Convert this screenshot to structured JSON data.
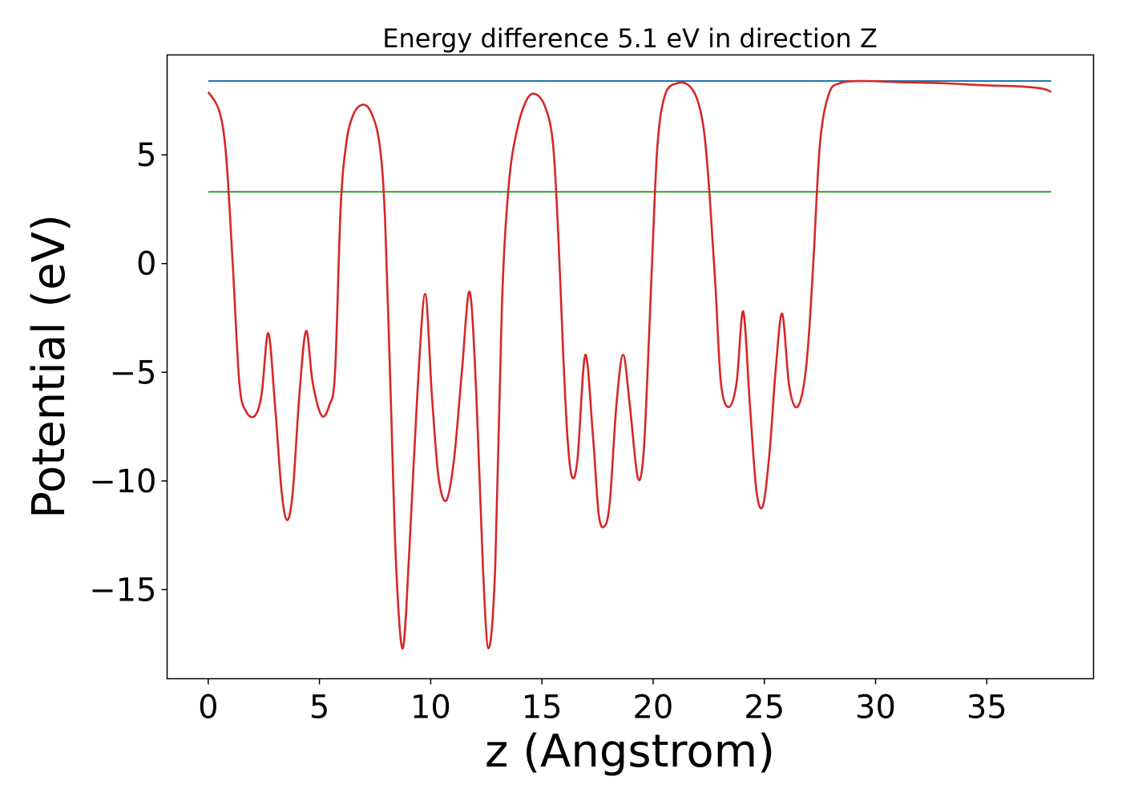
{
  "chart_data": {
    "type": "line",
    "title": "Energy difference 5.1 eV in direction Z",
    "xlabel": "z (Angstrom)",
    "ylabel": "Potential (eV)",
    "xlim": [
      -1.85,
      39.8
    ],
    "ylim": [
      -19.1,
      9.6
    ],
    "xticks": [
      0,
      5,
      10,
      15,
      20,
      25,
      30,
      35
    ],
    "xtick_labels": [
      "0",
      "5",
      "10",
      "15",
      "20",
      "25",
      "30",
      "35"
    ],
    "yticks": [
      5,
      0,
      -5,
      -10,
      -15
    ],
    "ytick_labels": [
      "5",
      "0",
      "−5",
      "−10",
      "−15"
    ],
    "grid": false,
    "series": [
      {
        "color": "#1f77b4",
        "x": [
          0,
          37.9
        ],
        "y": [
          8.4,
          8.4
        ]
      },
      {
        "color": "#2ca02c",
        "x": [
          0,
          37.9
        ],
        "y": [
          3.3,
          3.3
        ]
      },
      {
        "color": "#d62728",
        "x": [
          0,
          0.5,
          0.8,
          1.1,
          1.4,
          1.7,
          2.1,
          2.4,
          2.7,
          3.0,
          3.3,
          3.55,
          3.8,
          4.1,
          4.4,
          4.7,
          5.1,
          5.45,
          5.7,
          5.95,
          6.2,
          6.5,
          6.9,
          7.3,
          7.7,
          7.95,
          8.2,
          8.45,
          8.75,
          9.05,
          9.4,
          9.75,
          10.05,
          10.35,
          10.7,
          11.05,
          11.4,
          11.75,
          12.05,
          12.35,
          12.6,
          12.9,
          13.2,
          13.5,
          13.85,
          14.3,
          14.7,
          15.15,
          15.5,
          15.75,
          15.95,
          16.15,
          16.35,
          16.6,
          16.95,
          17.3,
          17.55,
          17.8,
          18.05,
          18.35,
          18.65,
          18.95,
          19.3,
          19.55,
          19.75,
          19.95,
          20.2,
          20.55,
          21.1,
          21.6,
          22.0,
          22.3,
          22.55,
          22.8,
          23.05,
          23.4,
          23.75,
          24.05,
          24.35,
          24.65,
          24.95,
          25.25,
          25.5,
          25.8,
          26.1,
          26.4,
          26.7,
          26.95,
          27.2,
          27.5,
          27.9,
          28.4,
          29.4,
          31.0,
          33.0,
          35.0,
          36.5,
          37.5,
          37.9
        ],
        "y": [
          7.9,
          7.0,
          5.0,
          0.0,
          -5.5,
          -6.8,
          -7.0,
          -6.0,
          -3.2,
          -6.5,
          -10.5,
          -11.8,
          -10.5,
          -6.0,
          -3.1,
          -5.5,
          -7.0,
          -6.5,
          -5.0,
          2.5,
          5.5,
          6.8,
          7.3,
          7.0,
          5.5,
          2.0,
          -6.0,
          -14.0,
          -17.7,
          -13.0,
          -6.0,
          -1.4,
          -6.0,
          -9.8,
          -10.9,
          -9.0,
          -5.0,
          -1.3,
          -6.0,
          -14.0,
          -17.7,
          -14.0,
          -2.0,
          3.5,
          6.0,
          7.5,
          7.8,
          7.2,
          5.5,
          1.0,
          -4.0,
          -8.0,
          -9.8,
          -9.0,
          -4.2,
          -8.0,
          -11.5,
          -12.1,
          -11.0,
          -6.5,
          -4.2,
          -6.5,
          -9.8,
          -9.0,
          -5.0,
          0.0,
          5.5,
          7.8,
          8.3,
          8.2,
          7.5,
          6.0,
          3.0,
          -1.0,
          -5.5,
          -6.6,
          -5.5,
          -2.2,
          -6.5,
          -10.5,
          -11.1,
          -8.5,
          -5.0,
          -2.3,
          -5.5,
          -6.6,
          -6.0,
          -4.0,
          0.0,
          5.5,
          7.8,
          8.3,
          8.4,
          8.35,
          8.3,
          8.2,
          8.15,
          8.05,
          7.9
        ]
      }
    ]
  }
}
